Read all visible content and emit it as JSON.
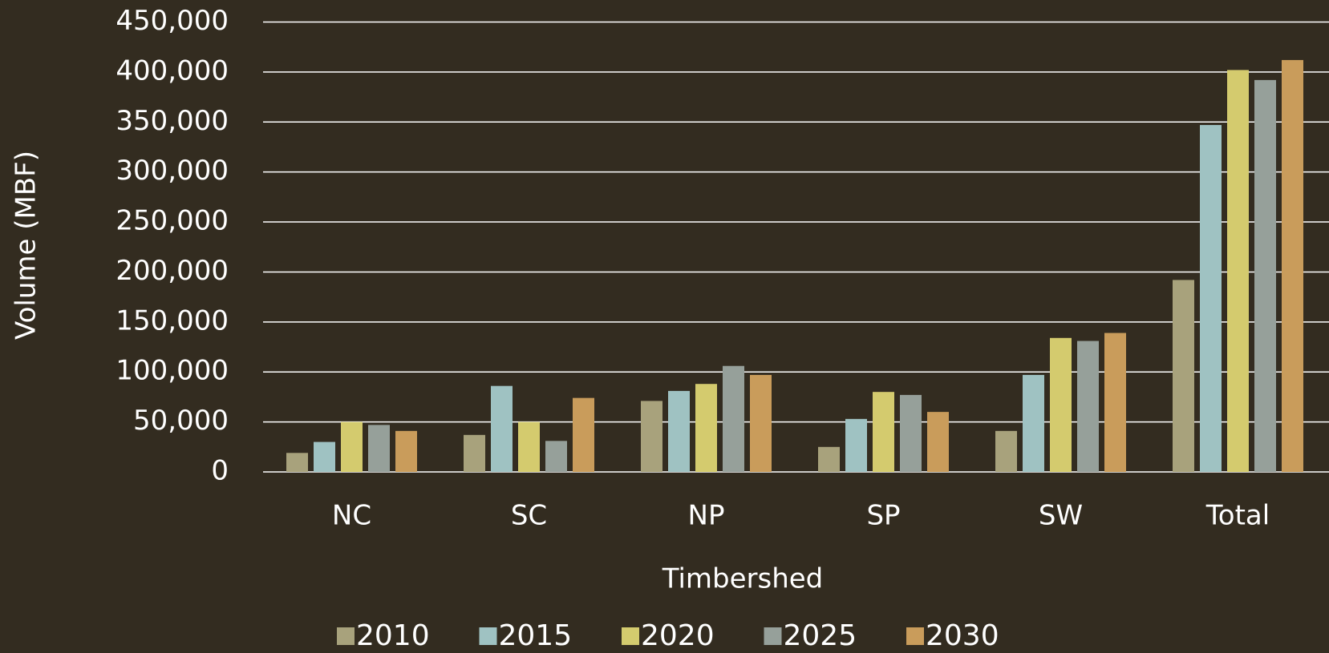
{
  "chart_data": {
    "type": "bar",
    "x_label": "Timbershed",
    "y_label": "Volume (MBF)",
    "categories": [
      "NC",
      "SC",
      "NP",
      "SP",
      "SW",
      "Total"
    ],
    "series": [
      {
        "name": "2010",
        "color": "#a8a27c",
        "values": [
          19000,
          37000,
          71000,
          25000,
          41000,
          192000
        ]
      },
      {
        "name": "2015",
        "color": "#9fc2c2",
        "values": [
          30000,
          86000,
          81000,
          53000,
          97000,
          347000
        ]
      },
      {
        "name": "2020",
        "color": "#d4cb6e",
        "values": [
          50000,
          50000,
          88000,
          80000,
          134000,
          402000
        ]
      },
      {
        "name": "2025",
        "color": "#96a09a",
        "values": [
          47000,
          31000,
          106000,
          77000,
          131000,
          392000
        ]
      },
      {
        "name": "2030",
        "color": "#c99c5b",
        "values": [
          41000,
          74000,
          97000,
          60000,
          139000,
          412000
        ]
      }
    ],
    "ylim": [
      0,
      450000
    ],
    "yticks": [
      0,
      {
        "value": 50000,
        "label": "50,000"
      },
      {
        "value": 100000,
        "label": "100,000"
      },
      {
        "value": 150000,
        "label": "150,000"
      },
      {
        "value": 200000,
        "label": "200,000"
      },
      {
        "value": 250000,
        "label": "250,000"
      },
      {
        "value": 300000,
        "label": "300,000"
      },
      {
        "value": 350000,
        "label": "350,000"
      },
      {
        "value": 400000,
        "label": "400,000"
      },
      {
        "value": 450000,
        "label": "450,000"
      }
    ],
    "grid": true,
    "legend": "bottom"
  }
}
